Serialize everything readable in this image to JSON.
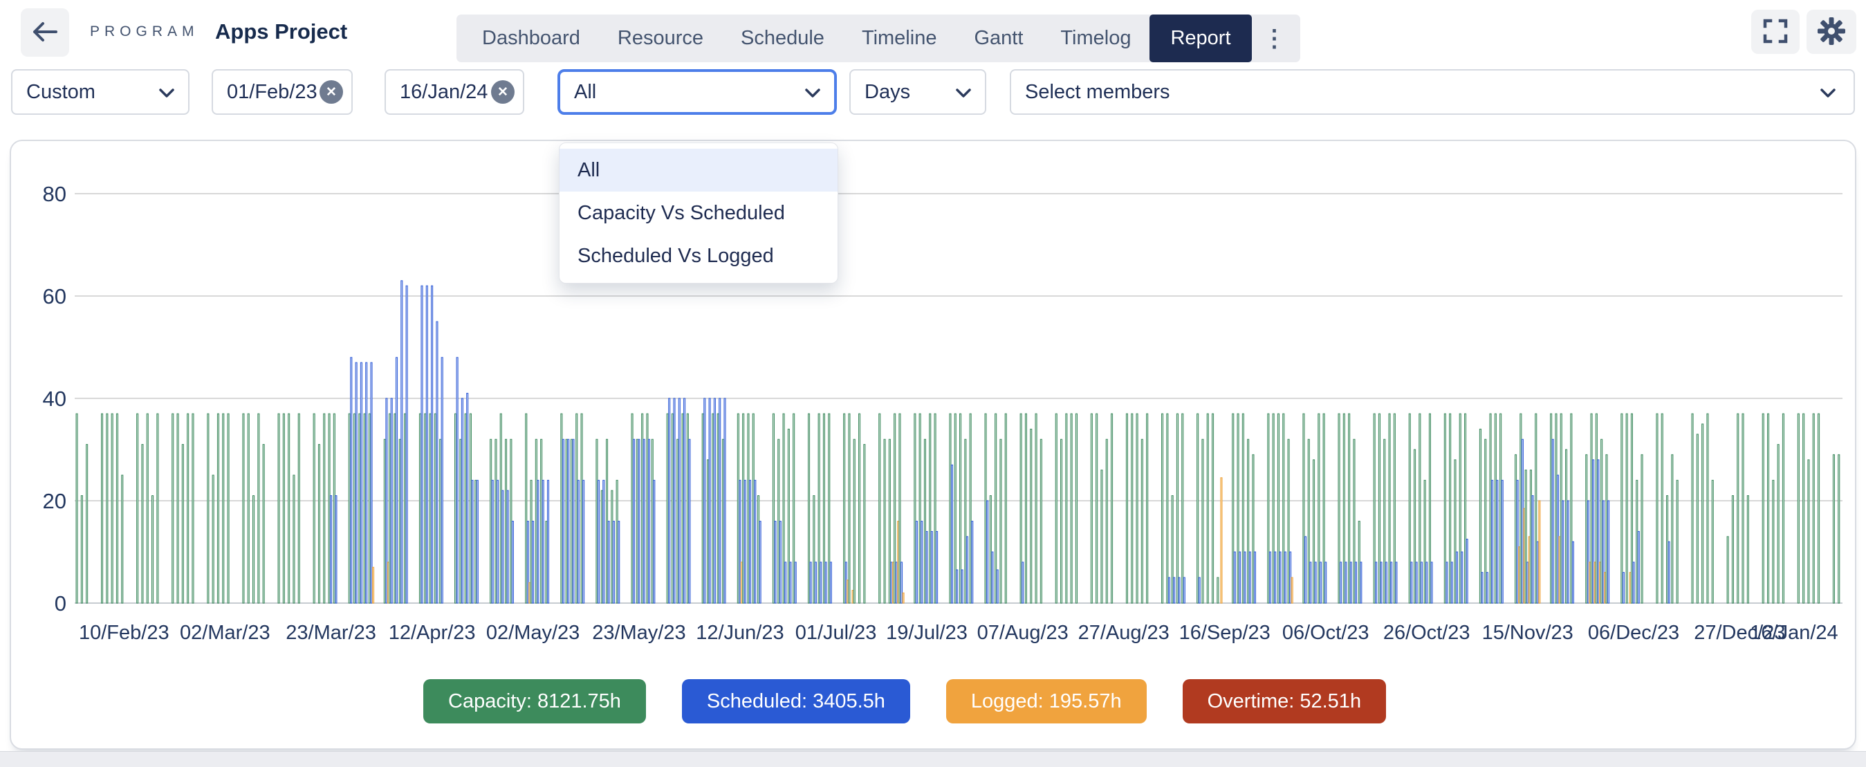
{
  "header": {
    "program_label": "PROGRAM",
    "project_title": "Apps Project"
  },
  "nav": {
    "tabs": [
      "Dashboard",
      "Resource",
      "Schedule",
      "Timeline",
      "Gantt",
      "Timelog",
      "Report"
    ],
    "active_tab": "Report"
  },
  "filters": {
    "range_preset": {
      "value": "Custom"
    },
    "date_from": {
      "value": "01/Feb/23"
    },
    "date_to": {
      "value": "16/Jan/24"
    },
    "report_type": {
      "value": "All"
    },
    "granularity": {
      "value": "Days"
    },
    "members": {
      "placeholder": "Select members"
    }
  },
  "dropdown": {
    "options": [
      "All",
      "Capacity Vs Scheduled",
      "Scheduled Vs Logged"
    ],
    "highlighted": "All"
  },
  "legend": {
    "items": [
      {
        "label": "Capacity",
        "value": "8121.75h",
        "color": "#3d8b5c"
      },
      {
        "label": "Scheduled",
        "value": "3405.5h",
        "color": "#2a5ad4"
      },
      {
        "label": "Logged",
        "value": "195.57h",
        "color": "#f0a33e"
      },
      {
        "label": "Overtime",
        "value": "52.51h",
        "color": "#b13a20"
      }
    ]
  },
  "chart_data": {
    "type": "bar",
    "unit": "hours per day",
    "start_date": "01/Feb/23",
    "end_date": "16/Jan/24",
    "y_ticks": [
      0,
      20,
      40,
      60,
      80
    ],
    "ylim": [
      0,
      86
    ],
    "grid": true,
    "series_names": [
      "Capacity",
      "Scheduled",
      "Logged",
      "Overtime"
    ],
    "series_colors": {
      "capacity": "#3c8a5e",
      "scheduled": "#2f5bd7",
      "logged": "#eea23b",
      "overtime": "#b03a1e"
    },
    "totals": {
      "capacity_h": 8121.75,
      "scheduled_h": 3405.5,
      "logged_h": 195.57,
      "overtime_h": 52.51
    },
    "x_tick_labels": [
      "10/Feb/23",
      "02/Mar/23",
      "23/Mar/23",
      "12/Apr/23",
      "02/May/23",
      "23/May/23",
      "12/Jun/23",
      "01/Jul/23",
      "19/Jul/23",
      "07/Aug/23",
      "27/Aug/23",
      "16/Sep/23",
      "06/Oct/23",
      "26/Oct/23",
      "15/Nov/23",
      "06/Dec/23",
      "27/Dec/23",
      "16/Jan/24"
    ],
    "x_tick_day_indices": [
      9,
      29,
      50,
      70,
      90,
      111,
      131,
      150,
      168,
      187,
      207,
      227,
      247,
      267,
      287,
      308,
      329,
      349
    ],
    "days_note": "One entry per day from 01/Feb/23; values = [capacity, scheduled, logged, overtime] hours; missing entries = 0; [] = weekend/empty",
    "days": [
      [
        37
      ],
      [
        21
      ],
      [
        31
      ],
      [],
      [],
      [
        37
      ],
      [
        37
      ],
      [
        37
      ],
      [
        37
      ],
      [
        25
      ],
      [],
      [],
      [
        37
      ],
      [
        31
      ],
      [
        37
      ],
      [
        21
      ],
      [
        37
      ],
      [],
      [],
      [
        37
      ],
      [
        37
      ],
      [
        31
      ],
      [
        37
      ],
      [
        37
      ],
      [],
      [],
      [
        37
      ],
      [
        25
      ],
      [
        37
      ],
      [
        37
      ],
      [
        37
      ],
      [],
      [],
      [
        37
      ],
      [
        37
      ],
      [
        21
      ],
      [
        37
      ],
      [
        31
      ],
      [],
      [],
      [
        37
      ],
      [
        37
      ],
      [
        37
      ],
      [
        25
      ],
      [
        37
      ],
      [],
      [],
      [
        37
      ],
      [
        31
      ],
      [
        37
      ],
      [
        37,
        21
      ],
      [
        37,
        21
      ],
      [],
      [],
      [
        37,
        48
      ],
      [
        37,
        47
      ],
      [
        37,
        47
      ],
      [
        37,
        47
      ],
      [
        37,
        47,
        7
      ],
      [],
      [],
      [
        32,
        40,
        8
      ],
      [
        37,
        40
      ],
      [
        37,
        48
      ],
      [
        32,
        63
      ],
      [
        37,
        62
      ],
      [],
      [],
      [
        37,
        62
      ],
      [
        37,
        62
      ],
      [
        37,
        62
      ],
      [
        37,
        55
      ],
      [
        32,
        48
      ],
      [],
      [],
      [
        37,
        48
      ],
      [
        32,
        40
      ],
      [
        37,
        41
      ],
      [
        37,
        24
      ],
      [
        24,
        24
      ],
      [],
      [],
      [
        32,
        24
      ],
      [
        32,
        24
      ],
      [
        37,
        22
      ],
      [
        32,
        22
      ],
      [
        32,
        16
      ],
      [],
      [],
      [
        37,
        16,
        4
      ],
      [
        24,
        16
      ],
      [
        32,
        24
      ],
      [
        32,
        24
      ],
      [
        16,
        24
      ],
      [],
      [],
      [
        37,
        32
      ],
      [
        32,
        32
      ],
      [
        32,
        32
      ],
      [
        37,
        24
      ],
      [
        37,
        24
      ],
      [],
      [],
      [
        32,
        24
      ],
      [
        22,
        24
      ],
      [
        32,
        16
      ],
      [
        22,
        16
      ],
      [
        24,
        16
      ],
      [],
      [],
      [
        37,
        32
      ],
      [
        32,
        32
      ],
      [
        37,
        32
      ],
      [
        37,
        32
      ],
      [
        32,
        24
      ],
      [],
      [],
      [
        37,
        40
      ],
      [
        37,
        40
      ],
      [
        32,
        40
      ],
      [
        37,
        40
      ],
      [
        37,
        32
      ],
      [],
      [],
      [
        37,
        40
      ],
      [
        28,
        40
      ],
      [
        37,
        40
      ],
      [
        37,
        40
      ],
      [
        32,
        40
      ],
      [],
      [],
      [
        37,
        24,
        8
      ],
      [
        37,
        24
      ],
      [
        37,
        24
      ],
      [
        37,
        24
      ],
      [
        21,
        16
      ],
      [],
      [],
      [
        37,
        16
      ],
      [
        32,
        16
      ],
      [
        37,
        8
      ],
      [
        34,
        8
      ],
      [
        37,
        8
      ],
      [],
      [],
      [
        37,
        8
      ],
      [
        21,
        8
      ],
      [
        37,
        8
      ],
      [
        37,
        8
      ],
      [
        37,
        8
      ],
      [],
      [],
      [
        37,
        8,
        4.5
      ],
      [
        37,
        0,
        2.5
      ],
      [
        32
      ],
      [
        37
      ],
      [
        31
      ],
      [],
      [],
      [
        37
      ],
      [
        32
      ],
      [
        32,
        8,
        8
      ],
      [
        37,
        8,
        16
      ],
      [
        37,
        8,
        2
      ],
      [],
      [],
      [
        37,
        16
      ],
      [
        37,
        16
      ],
      [
        32,
        14
      ],
      [
        37,
        14
      ],
      [
        37,
        14
      ],
      [],
      [],
      [
        37,
        27
      ],
      [
        37,
        6.5
      ],
      [
        37,
        6.5
      ],
      [
        32,
        13
      ],
      [
        37,
        16
      ],
      [],
      [],
      [
        37,
        20
      ],
      [
        21,
        10
      ],
      [
        37,
        6.5
      ],
      [
        32
      ],
      [
        37
      ],
      [],
      [],
      [
        37,
        8
      ],
      [
        37
      ],
      [
        34
      ],
      [
        37
      ],
      [
        32
      ],
      [],
      [],
      [
        37
      ],
      [
        32
      ],
      [
        37
      ],
      [
        37
      ],
      [
        37
      ],
      [],
      [],
      [
        37
      ],
      [
        37
      ],
      [
        26
      ],
      [
        32
      ],
      [
        37
      ],
      [],
      [],
      [
        37
      ],
      [
        37
      ],
      [
        37
      ],
      [
        32
      ],
      [
        37
      ],
      [],
      [],
      [
        37
      ],
      [
        37,
        5
      ],
      [
        21,
        5
      ],
      [
        37,
        5
      ],
      [
        37,
        5
      ],
      [],
      [],
      [
        37,
        5
      ],
      [
        32
      ],
      [
        37
      ],
      [
        37
      ],
      [
        5,
        0,
        24.5
      ],
      [],
      [],
      [
        37,
        10
      ],
      [
        37,
        10
      ],
      [
        37,
        10
      ],
      [
        32,
        10
      ],
      [
        29,
        10
      ],
      [],
      [],
      [
        37,
        10
      ],
      [
        37,
        10
      ],
      [
        37,
        10
      ],
      [
        37,
        10
      ],
      [
        32,
        10,
        5
      ],
      [],
      [],
      [
        37,
        13
      ],
      [
        32,
        8
      ],
      [
        28,
        8
      ],
      [
        37,
        8
      ],
      [
        37,
        8
      ],
      [],
      [],
      [
        37,
        8
      ],
      [
        37,
        8
      ],
      [
        37,
        8
      ],
      [
        32,
        8
      ],
      [
        16,
        8
      ],
      [],
      [],
      [
        37,
        8
      ],
      [
        37,
        8
      ],
      [
        32,
        8
      ],
      [
        37,
        8
      ],
      [
        37,
        8
      ],
      [],
      [],
      [
        37,
        8
      ],
      [
        30,
        8
      ],
      [
        37,
        8
      ],
      [
        24,
        8
      ],
      [
        37,
        8
      ],
      [],
      [],
      [
        37,
        8
      ],
      [
        37,
        8
      ],
      [
        28,
        10
      ],
      [
        37,
        10
      ],
      [
        37,
        12.5
      ],
      [],
      [],
      [
        34,
        6
      ],
      [
        32,
        6
      ],
      [
        37,
        24
      ],
      [
        37,
        24
      ],
      [
        37,
        24
      ],
      [],
      [],
      [
        29,
        24,
        11
      ],
      [
        37,
        32,
        18.5
      ],
      [
        26,
        8,
        13
      ],
      [
        26,
        21
      ],
      [
        37,
        12,
        20
      ],
      [],
      [],
      [
        37,
        32
      ],
      [
        37,
        25,
        13
      ],
      [
        37,
        20
      ],
      [
        30,
        20
      ],
      [
        37,
        12
      ],
      [],
      [],
      [
        29,
        20,
        8
      ],
      [
        37,
        28,
        8
      ],
      [
        37,
        28,
        8
      ],
      [
        32,
        20,
        6
      ],
      [
        29,
        20
      ],
      [],
      [],
      [
        37,
        6
      ],
      [
        37,
        0,
        6
      ],
      [
        37,
        8
      ],
      [
        24,
        14
      ],
      [
        29
      ],
      [],
      [],
      [
        37
      ],
      [
        37
      ],
      [
        21,
        12
      ],
      [
        29
      ],
      [
        24
      ],
      [],
      [],
      [
        37
      ],
      [
        33
      ],
      [
        35
      ],
      [
        37
      ],
      [
        24
      ],
      [],
      [],
      [
        13
      ],
      [
        21
      ],
      [
        37
      ],
      [
        37
      ],
      [
        21
      ],
      [],
      [],
      [
        37
      ],
      [
        37
      ],
      [
        24
      ],
      [
        31
      ],
      [
        37
      ],
      [],
      [],
      [
        37
      ],
      [
        37
      ],
      [
        28
      ],
      [
        37
      ],
      [
        37
      ],
      [],
      [],
      [
        29
      ],
      [
        29
      ]
    ]
  }
}
